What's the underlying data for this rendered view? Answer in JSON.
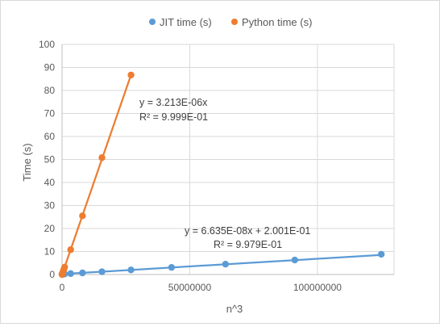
{
  "chart_data": {
    "type": "scatter",
    "title": "",
    "xlabel": "n^3",
    "ylabel": "Time (s)",
    "xlim": [
      0,
      130000000
    ],
    "ylim": [
      0,
      100
    ],
    "x_ticks": [
      0,
      50000000,
      100000000
    ],
    "x_tick_labels": [
      "0",
      "50000000",
      "100000000"
    ],
    "y_ticks": [
      0,
      10,
      20,
      30,
      40,
      50,
      60,
      70,
      80,
      90,
      100
    ],
    "y_tick_labels": [
      "0",
      "10",
      "20",
      "30",
      "40",
      "50",
      "60",
      "70",
      "80",
      "90",
      "100"
    ],
    "grid": true,
    "legend_position": "top",
    "series": [
      {
        "name": "JIT time (s)",
        "color": "#5b9bd5",
        "x": [
          1000,
          8000,
          27000,
          64000,
          125000,
          216000,
          343000,
          512000,
          729000,
          1000000,
          3375000,
          8000000,
          15625000,
          27000000,
          42875000,
          64000000,
          91125000,
          125000000
        ],
        "y": [
          0.2,
          0.2,
          0.2,
          0.2,
          0.2,
          0.2,
          0.2,
          0.2,
          0.2,
          0.25,
          0.4,
          0.7,
          1.2,
          2.0,
          3.1,
          4.5,
          6.3,
          8.8
        ],
        "trendline": {
          "slope": 6.635e-08,
          "intercept": 0.2001,
          "label": "y = 6.635E-08x + 2.001E-01",
          "r2_label": "R² = 9.979E-01"
        }
      },
      {
        "name": "Python time (s)",
        "color": "#ed7d31",
        "x": [
          1000,
          8000,
          27000,
          64000,
          125000,
          216000,
          343000,
          512000,
          729000,
          1000000,
          3375000,
          8000000,
          15625000,
          27000000
        ],
        "y": [
          0.0,
          0.03,
          0.09,
          0.2,
          0.4,
          0.7,
          1.1,
          1.6,
          2.3,
          3.2,
          10.8,
          25.5,
          50.8,
          86.7
        ],
        "trendline": {
          "slope": 3.213e-06,
          "intercept": 0,
          "label": "y = 3.213E-06x",
          "r2_label": "R² = 9.999E-01"
        }
      }
    ]
  }
}
